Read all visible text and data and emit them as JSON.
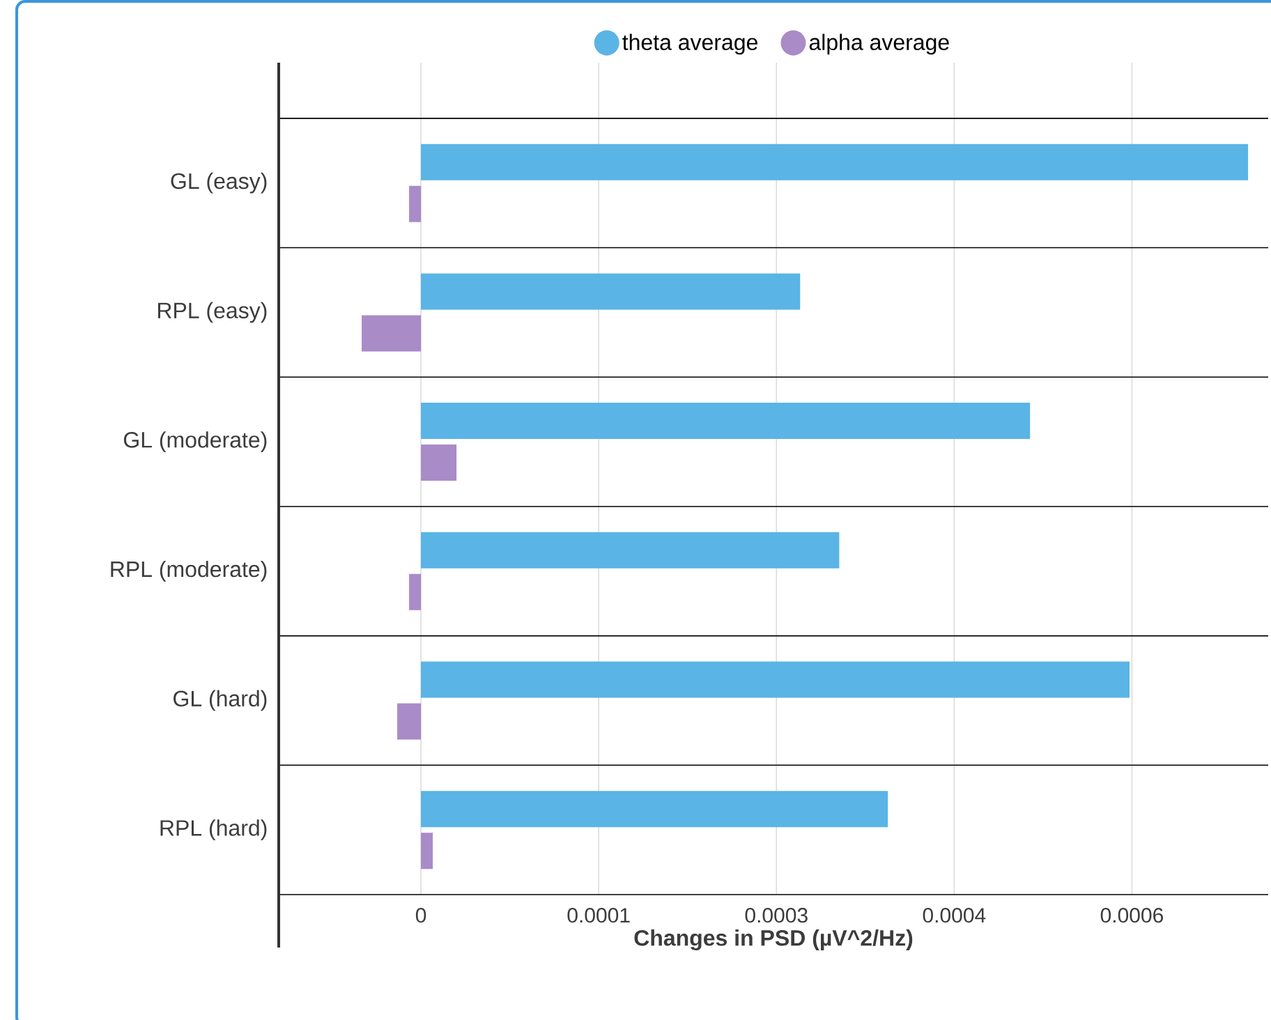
{
  "chart_data": {
    "type": "bar",
    "orientation": "horizontal",
    "xlabel": "Changes in PSD (µV^2/Hz)",
    "categories": [
      "GL (easy)",
      "RPL (easy)",
      "GL (moderate)",
      "RPL (moderate)",
      "GL (hard)",
      "RPL (hard)"
    ],
    "series": [
      {
        "name": "theta average",
        "color": "#5ab4e5",
        "values": [
          0.000698,
          0.00032,
          0.000514,
          0.000353,
          0.000598,
          0.000394
        ]
      },
      {
        "name": "alpha average",
        "color": "#a98bc8",
        "values": [
          -1e-05,
          -5e-05,
          3e-05,
          -1e-05,
          -2e-05,
          1e-05
        ]
      }
    ],
    "xlim": [
      -0.00012,
      0.000715
    ],
    "xticks": [
      {
        "value": 0,
        "label": "0"
      },
      {
        "value": 0.00015,
        "label": "0.0001"
      },
      {
        "value": 0.0003,
        "label": "0.0003"
      },
      {
        "value": 0.00045,
        "label": "0.0004"
      },
      {
        "value": 0.0006,
        "label": "0.0006"
      }
    ],
    "grid": "x",
    "legend": "top"
  }
}
